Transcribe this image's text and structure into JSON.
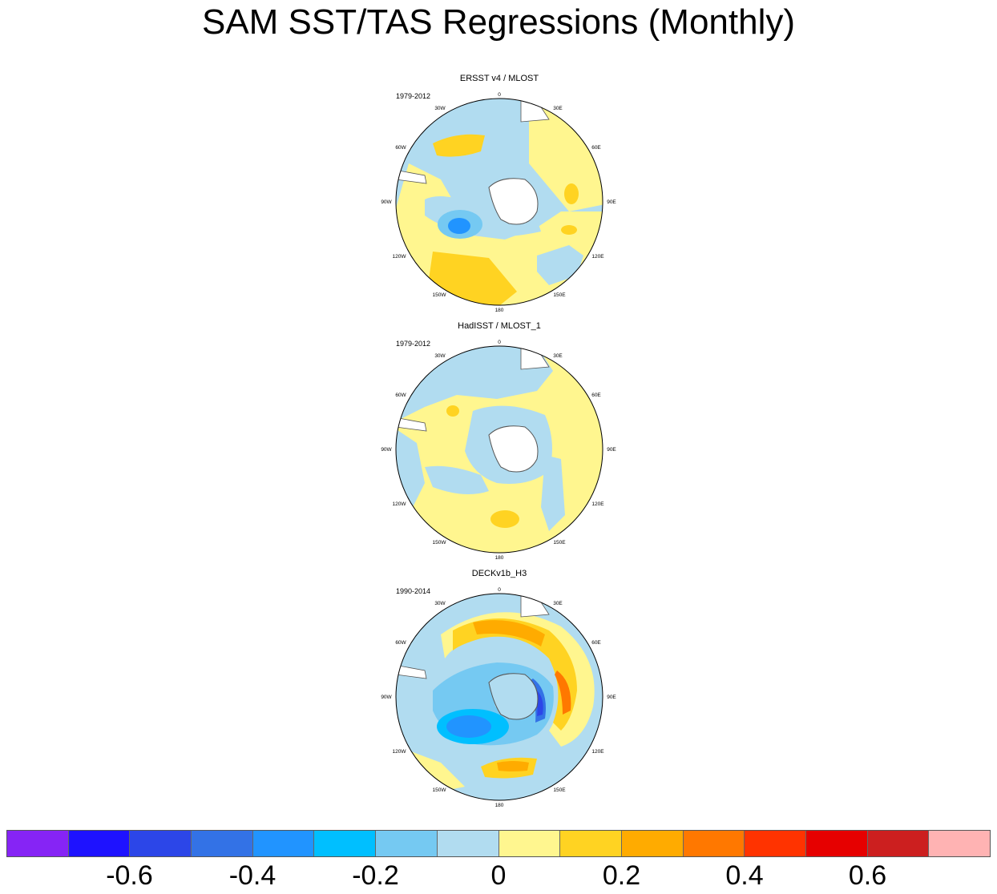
{
  "title": "SAM SST/TAS Regressions (Monthly)",
  "panels": [
    {
      "title": "ERSST v4 / MLOST",
      "period": "1979-2012"
    },
    {
      "title": "HadISST / MLOST_1",
      "period": "1979-2012"
    },
    {
      "title": "DECKv1b_H3",
      "period": "1990-2014"
    }
  ],
  "longitude_labels": [
    "0",
    "30E",
    "60E",
    "90E",
    "120E",
    "150E",
    "180",
    "150W",
    "120W",
    "90W",
    "60W",
    "30W"
  ],
  "colorbar": {
    "colors": [
      "#8624f5",
      "#1e12ff",
      "#2c46e8",
      "#3372e6",
      "#2194ff",
      "#00bfff",
      "#75c9f2",
      "#b1dcf0",
      "#fff68f",
      "#ffd322",
      "#ffab00",
      "#ff7800",
      "#ff3300",
      "#e60000",
      "#cc1f1f",
      "#ffb3b3"
    ],
    "labels": [
      "-0.6",
      "-0.4",
      "-0.2",
      "0",
      "0.2",
      "0.4",
      "0.6"
    ]
  }
}
